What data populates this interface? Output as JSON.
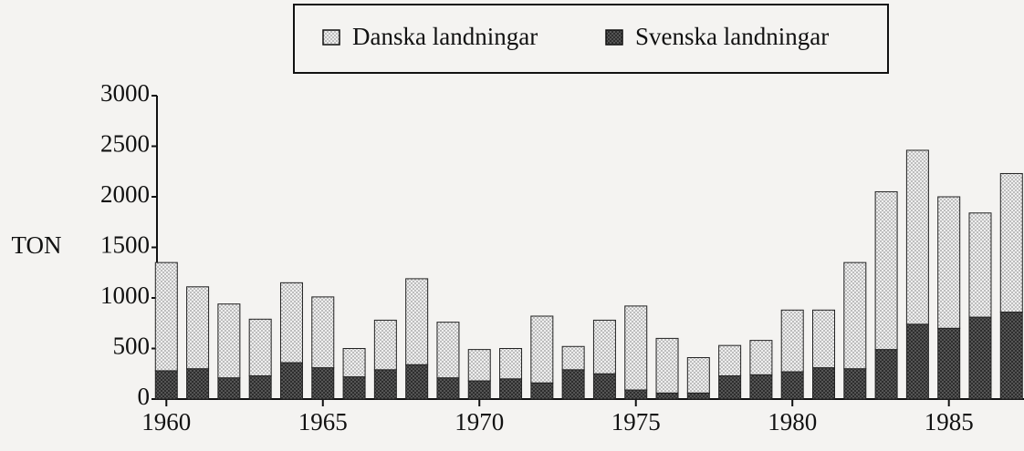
{
  "chart_data": {
    "type": "stacked_bar",
    "y_label": "TON",
    "x": [
      1960,
      1961,
      1962,
      1963,
      1964,
      1965,
      1966,
      1967,
      1968,
      1969,
      1970,
      1971,
      1972,
      1973,
      1974,
      1975,
      1976,
      1977,
      1978,
      1979,
      1980,
      1981,
      1982,
      1983,
      1984,
      1985,
      1986,
      1987
    ],
    "series": [
      {
        "name": "Svenska landningar",
        "color": "#2e2e2e",
        "values": [
          280,
          300,
          210,
          230,
          360,
          310,
          220,
          290,
          340,
          210,
          180,
          200,
          160,
          290,
          250,
          90,
          60,
          60,
          230,
          240,
          270,
          310,
          300,
          490,
          740,
          700,
          810,
          860
        ]
      },
      {
        "name": "Danska landningar",
        "color": "#bdbdbd",
        "values": [
          1070,
          810,
          730,
          560,
          790,
          700,
          280,
          490,
          850,
          550,
          310,
          300,
          660,
          230,
          530,
          830,
          540,
          350,
          300,
          340,
          610,
          570,
          1050,
          1560,
          1720,
          1300,
          1030,
          1370
        ]
      }
    ],
    "legend_order": [
      "Danska landningar",
      "Svenska landningar"
    ],
    "xlim": [
      1959.7,
      1987.4
    ],
    "xticks": [
      1960,
      1965,
      1970,
      1975,
      1980,
      1985
    ],
    "ylim": [
      0,
      3000
    ],
    "yticks": [
      0,
      500,
      1000,
      1500,
      2000,
      2500,
      3000
    ],
    "legend": "top"
  }
}
